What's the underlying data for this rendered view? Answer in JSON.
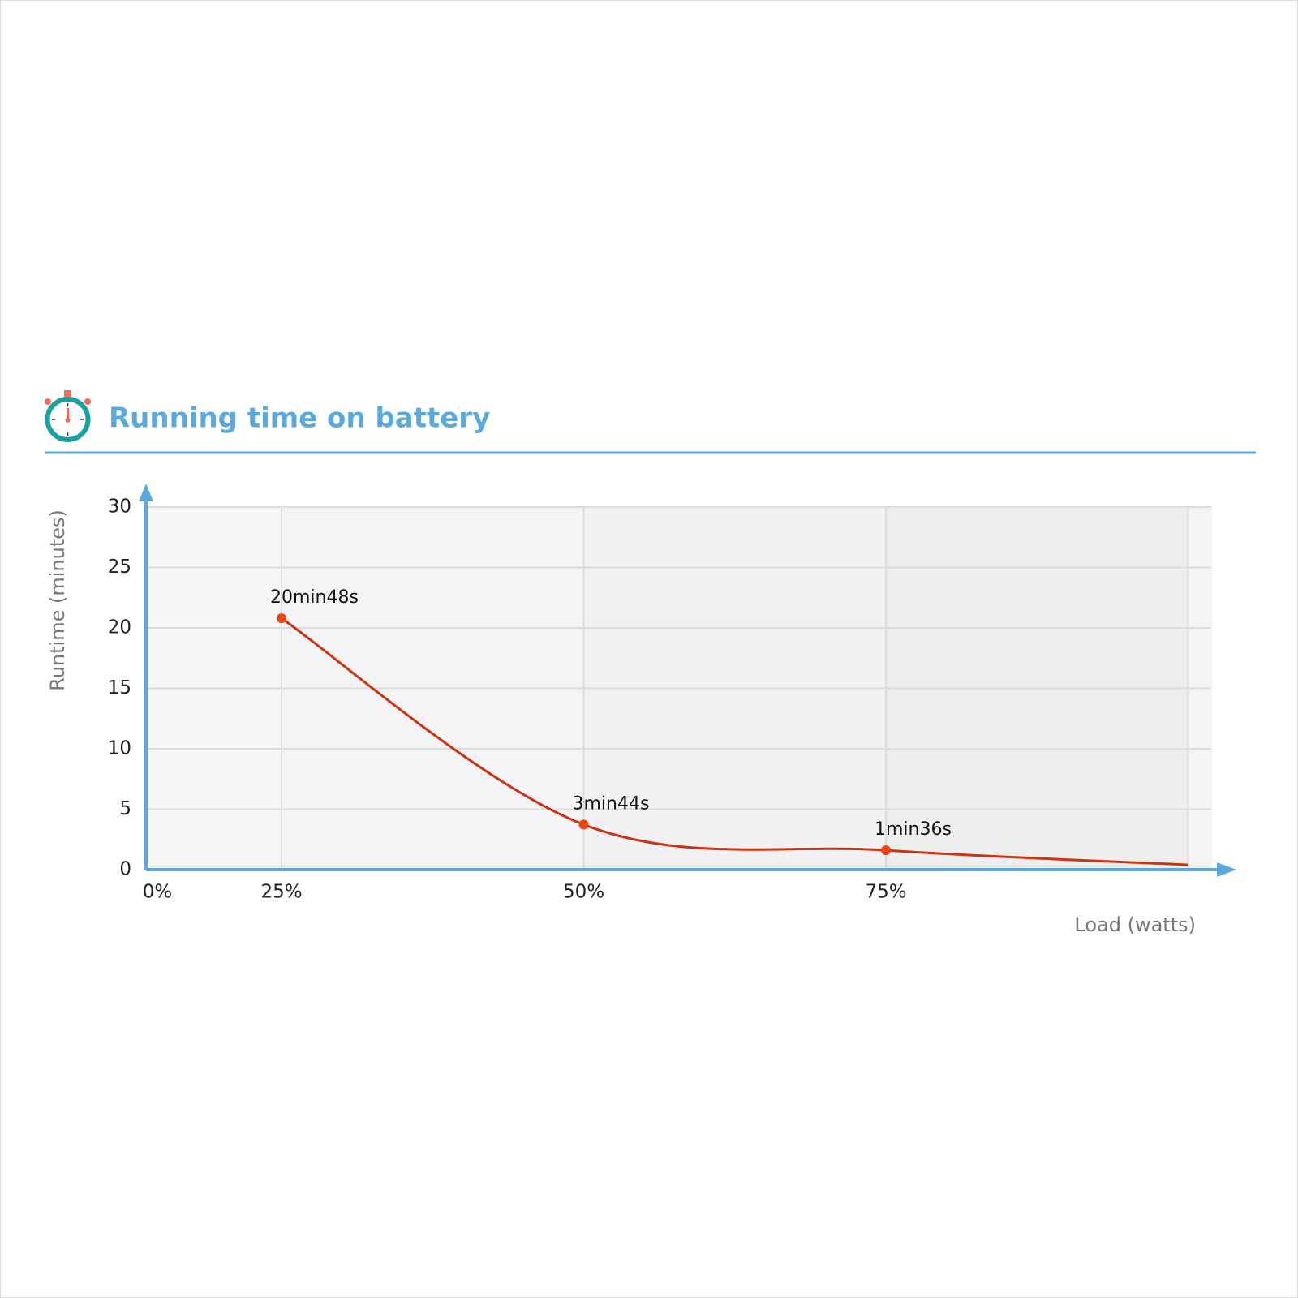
{
  "chart_data": {
    "type": "line",
    "title": "Running time on battery",
    "x_label": "Load (watts)",
    "y_label": "Runtime (minutes)",
    "categories": [
      "0%",
      "25%",
      "50%",
      "75%",
      null
    ],
    "series": [
      {
        "name": "Runtime",
        "color": "#cc3311",
        "point_color": "#ee4411",
        "values": [
          null,
          20.8,
          3.73,
          1.6,
          0.4
        ],
        "value_labels": [
          null,
          "20min48s",
          "3min44s",
          "1min36s",
          null
        ]
      }
    ],
    "ylim": [
      0,
      30
    ],
    "yticks": [
      0,
      5,
      10,
      15,
      20,
      25,
      30
    ],
    "grid": true,
    "axis_color": "#5aa9dc"
  }
}
